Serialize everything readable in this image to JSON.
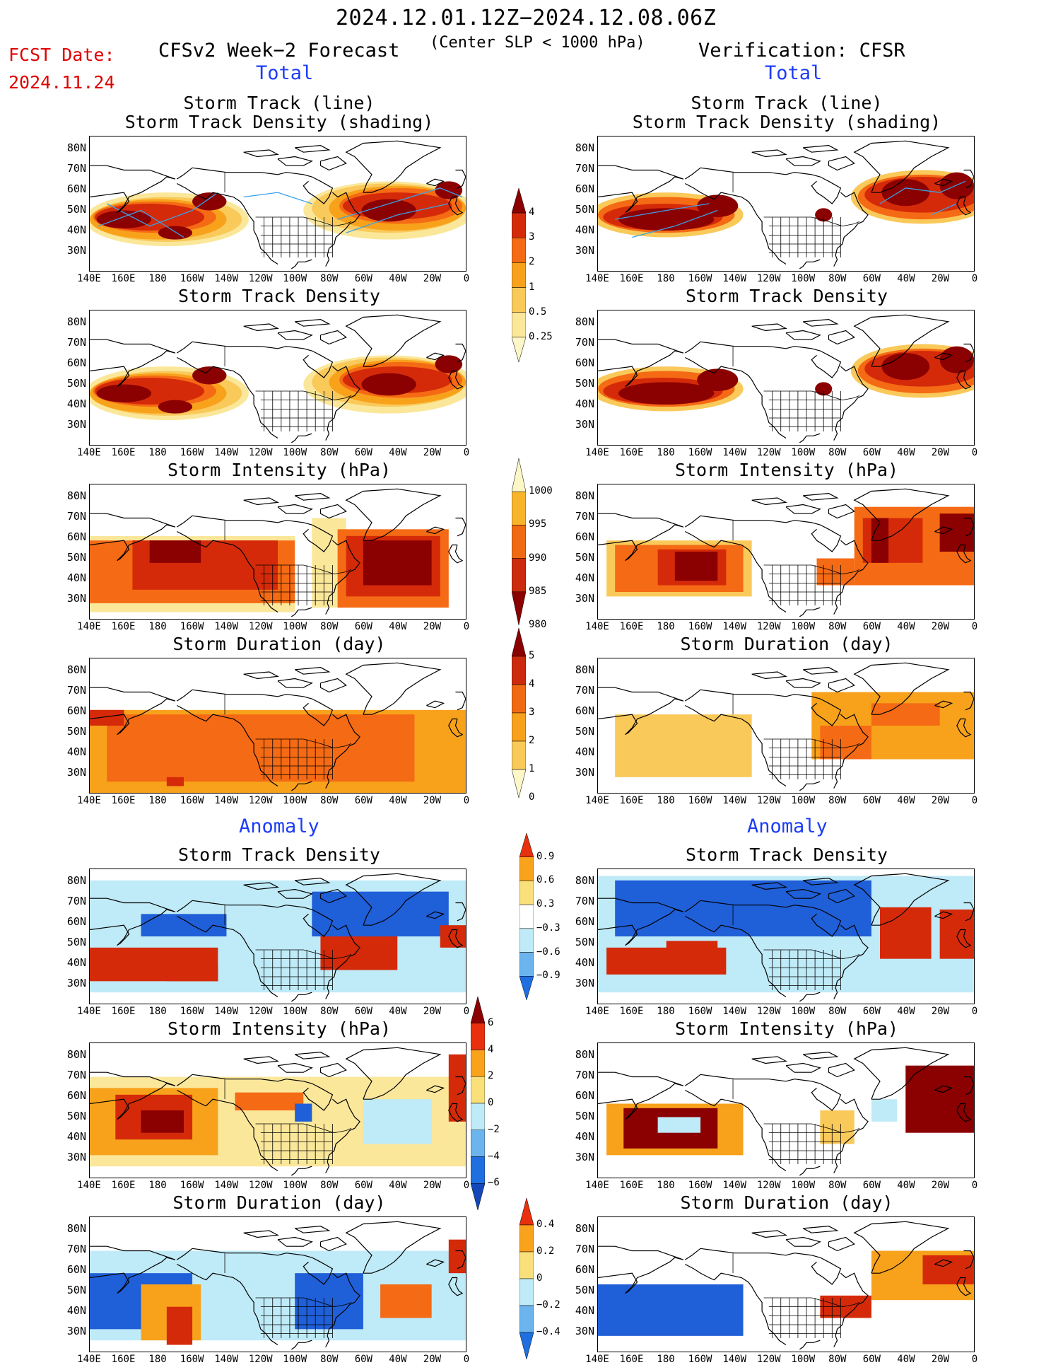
{
  "header": {
    "date_range": "2024.12.01.12Z−2024.12.08.06Z",
    "criterion": "(Center SLP < 1000 hPa)",
    "fcst_label": "FCST Date:",
    "fcst_date": "2024.11.24",
    "forecast_title": "CFSv2 Week−2 Forecast",
    "verification_title": "Verification: CFSR"
  },
  "sections": {
    "total_left": "Total",
    "total_right": "Total",
    "anomaly_left": "Anomaly",
    "anomaly_right": "Anomaly"
  },
  "panel_titles": {
    "track_line": "Storm Track (line)",
    "track_density_shading": "Storm Track Density (shading)",
    "track_density": "Storm Track Density",
    "intensity": "Storm Intensity (hPa)",
    "duration": "Storm Duration (day)"
  },
  "axes": {
    "lat_labels": [
      "80N",
      "70N",
      "60N",
      "50N",
      "40N",
      "30N"
    ],
    "lon_labels": [
      "140E",
      "160E",
      "180",
      "160W",
      "140W",
      "120W",
      "100W",
      "80W",
      "60W",
      "40W",
      "20W",
      "0"
    ]
  },
  "colorbars": {
    "density": {
      "labels": [
        "4",
        "3",
        "2",
        "1",
        "0.5",
        "0.25"
      ],
      "colors": [
        "#8b0000",
        "#d42a0a",
        "#f56a14",
        "#f8a21c",
        "#f9c95a",
        "#fbe79a",
        "#fdf7c8"
      ]
    },
    "intensity": {
      "labels": [
        "1000",
        "995",
        "990",
        "985",
        "980"
      ],
      "colors": [
        "#fdf7c8",
        "#f8b42a",
        "#f06a14",
        "#cc2a0e",
        "#8b0000"
      ]
    },
    "duration": {
      "labels": [
        "5",
        "4",
        "3",
        "2",
        "1",
        "0"
      ],
      "colors": [
        "#8b0000",
        "#cc2a0e",
        "#f06a14",
        "#f8a21c",
        "#f9c95a",
        "#fdf7c8"
      ]
    },
    "density_anom": {
      "labels": [
        "0.9",
        "0.6",
        "0.3",
        "−0.3",
        "−0.6",
        "−0.9"
      ],
      "colors": [
        "#e8300e",
        "#f9a21c",
        "#f9e07a",
        "#ffffff",
        "#bfeaf7",
        "#6cb4ee",
        "#1f6fe0"
      ]
    },
    "intensity_anom": {
      "labels": [
        "6",
        "4",
        "2",
        "0",
        "−2",
        "−4",
        "−6"
      ],
      "colors": [
        "#8b0000",
        "#e8300e",
        "#f9a21c",
        "#f9e07a",
        "#bfeaf7",
        "#6cb4ee",
        "#1f6fe0",
        "#1447b8"
      ]
    },
    "duration_anom": {
      "labels": [
        "0.4",
        "0.2",
        "0",
        "−0.2",
        "−0.4"
      ],
      "colors": [
        "#e8300e",
        "#f9a21c",
        "#f9e07a",
        "#bfeaf7",
        "#6cb4ee",
        "#1f6fe0"
      ]
    }
  },
  "palette": {
    "dark_red": "#8b0000",
    "red": "#d42a0a",
    "orange": "#f56a14",
    "light_orange": "#f8a21c",
    "yellow": "#f9c95a",
    "pale_yellow": "#fbe79a",
    "blue_dark": "#1f5fd8",
    "blue_light": "#bfeaf7",
    "track_line": "#3aa0e8",
    "title_blue": "#1d3df5",
    "fcst_red": "#e00000"
  }
}
